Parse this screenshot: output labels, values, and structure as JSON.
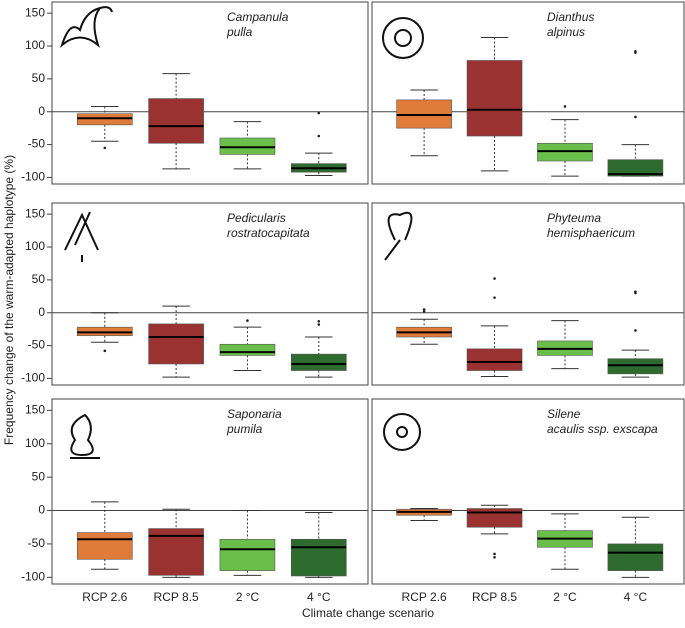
{
  "ylabel": "Frequency change of the warm-adapted haplotype (%)",
  "xlabel": "Climate change scenario",
  "categories": [
    "RCP 2.6",
    "RCP 8.5",
    "2 °C",
    "4 °C"
  ],
  "ylim": [
    -110,
    167
  ],
  "yticks": [
    150,
    100,
    50,
    0,
    -50,
    -100
  ],
  "chart_data": [
    {
      "type": "box",
      "title": [
        "Campanula",
        "pulla"
      ],
      "boxes": [
        {
          "color": "#e07b39",
          "min": -45,
          "q1": -20,
          "median": -10,
          "q3": -3,
          "max": 8,
          "outliers": [
            -55
          ]
        },
        {
          "color": "#9b3232",
          "min": -87,
          "q1": -48,
          "median": -22,
          "q3": 20,
          "max": 58,
          "outliers": []
        },
        {
          "color": "#6abf4b",
          "min": -87,
          "q1": -65,
          "median": -54,
          "q3": -40,
          "max": -15,
          "outliers": []
        },
        {
          "color": "#2e6b2e",
          "min": -97,
          "q1": -92,
          "median": -86,
          "q3": -79,
          "max": -63,
          "outliers": [
            -2,
            -37
          ]
        }
      ]
    },
    {
      "type": "box",
      "title": [
        "Dianthus",
        "alpinus"
      ],
      "boxes": [
        {
          "color": "#e07b39",
          "min": -67,
          "q1": -25,
          "median": -5,
          "q3": 18,
          "max": 33,
          "outliers": []
        },
        {
          "color": "#9b3232",
          "min": -90,
          "q1": -37,
          "median": 3,
          "q3": 78,
          "max": 113,
          "outliers": []
        },
        {
          "color": "#6abf4b",
          "min": -98,
          "q1": -75,
          "median": -60,
          "q3": -48,
          "max": -12,
          "outliers": [
            8
          ]
        },
        {
          "color": "#2e6b2e",
          "min": -98,
          "q1": -98,
          "median": -95,
          "q3": -73,
          "max": -50,
          "outliers": [
            92,
            90,
            -8
          ]
        }
      ]
    },
    {
      "type": "box",
      "title": [
        "Pedicularis",
        "rostratocapitata"
      ],
      "boxes": [
        {
          "color": "#e07b39",
          "min": -45,
          "q1": -35,
          "median": -30,
          "q3": -22,
          "max": 0,
          "outliers": [
            -58
          ]
        },
        {
          "color": "#9b3232",
          "min": -98,
          "q1": -78,
          "median": -37,
          "q3": -17,
          "max": 10,
          "outliers": []
        },
        {
          "color": "#6abf4b",
          "min": -88,
          "q1": -65,
          "median": -60,
          "q3": -48,
          "max": -22,
          "outliers": [
            -12
          ]
        },
        {
          "color": "#2e6b2e",
          "min": -98,
          "q1": -88,
          "median": -78,
          "q3": -63,
          "max": -37,
          "outliers": [
            -13,
            -18
          ]
        }
      ]
    },
    {
      "type": "box",
      "title": [
        "Phyteuma",
        "hemisphaericum"
      ],
      "boxes": [
        {
          "color": "#e07b39",
          "min": -48,
          "q1": -37,
          "median": -30,
          "q3": -22,
          "max": -10,
          "outliers": [
            5,
            2
          ]
        },
        {
          "color": "#9b3232",
          "min": -97,
          "q1": -88,
          "median": -75,
          "q3": -55,
          "max": -20,
          "outliers": [
            52,
            23
          ]
        },
        {
          "color": "#6abf4b",
          "min": -85,
          "q1": -65,
          "median": -55,
          "q3": -43,
          "max": -12,
          "outliers": []
        },
        {
          "color": "#2e6b2e",
          "min": -98,
          "q1": -93,
          "median": -80,
          "q3": -70,
          "max": -57,
          "outliers": [
            32,
            30,
            -27
          ]
        }
      ]
    },
    {
      "type": "box",
      "title": [
        "Saponaria",
        "pumila"
      ],
      "boxes": [
        {
          "color": "#e07b39",
          "min": -88,
          "q1": -73,
          "median": -43,
          "q3": -33,
          "max": 13,
          "outliers": []
        },
        {
          "color": "#9b3232",
          "min": -100,
          "q1": -97,
          "median": -38,
          "q3": -27,
          "max": 2,
          "outliers": []
        },
        {
          "color": "#6abf4b",
          "min": -97,
          "q1": -90,
          "median": -58,
          "q3": -43,
          "max": 0,
          "outliers": []
        },
        {
          "color": "#2e6b2e",
          "min": -100,
          "q1": -98,
          "median": -55,
          "q3": -43,
          "max": -3,
          "outliers": []
        }
      ]
    },
    {
      "type": "box",
      "title": [
        "Silene",
        "acaulis ssp. exscapa"
      ],
      "boxes": [
        {
          "color": "#e07b39",
          "min": -15,
          "q1": -7,
          "median": -2,
          "q3": 2,
          "max": 3,
          "outliers": []
        },
        {
          "color": "#9b3232",
          "min": -35,
          "q1": -25,
          "median": -3,
          "q3": 3,
          "max": 8,
          "outliers": [
            -65,
            -70
          ]
        },
        {
          "color": "#6abf4b",
          "min": -88,
          "q1": -55,
          "median": -42,
          "q3": -30,
          "max": -5,
          "outliers": []
        },
        {
          "color": "#2e6b2e",
          "min": -100,
          "q1": -90,
          "median": -63,
          "q3": -50,
          "max": -10,
          "outliers": []
        }
      ]
    }
  ]
}
